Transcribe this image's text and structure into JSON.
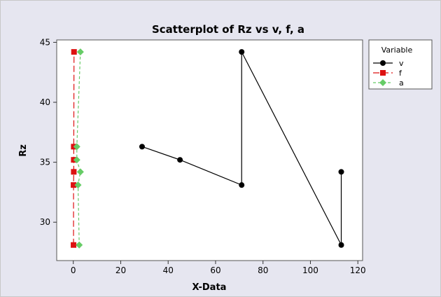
{
  "chart_data": {
    "type": "scatter",
    "title": "Scatterplot of Rz vs v, f, a",
    "xlabel": "X-Data",
    "ylabel": "Rz",
    "xlim": [
      -7,
      122
    ],
    "ylim": [
      26.8,
      45.2
    ],
    "x_ticks": [
      0,
      20,
      40,
      60,
      80,
      100,
      120
    ],
    "y_ticks": [
      30,
      35,
      40,
      45
    ],
    "grid": false,
    "legend": {
      "title": "Variable",
      "placement": "right",
      "entries": [
        "v",
        "f",
        "a"
      ]
    },
    "series": [
      {
        "name": "v",
        "color": "#000000",
        "marker": "circle",
        "line": "solid",
        "points": [
          {
            "x": 29,
            "y": 36.3
          },
          {
            "x": 45,
            "y": 35.2
          },
          {
            "x": 71,
            "y": 33.1
          },
          {
            "x": 71,
            "y": 44.2
          },
          {
            "x": 113,
            "y": 28.1
          },
          {
            "x": 113,
            "y": 34.2
          }
        ]
      },
      {
        "name": "f",
        "color": "#dd1111",
        "marker": "square",
        "line": "long-dash",
        "points": [
          {
            "x": 0.1,
            "y": 28.1
          },
          {
            "x": 0.1,
            "y": 33.1
          },
          {
            "x": 0.2,
            "y": 34.2
          },
          {
            "x": 0.2,
            "y": 35.2
          },
          {
            "x": 0.2,
            "y": 36.3
          },
          {
            "x": 0.3,
            "y": 44.2
          }
        ]
      },
      {
        "name": "a",
        "color": "#66cc66",
        "marker": "diamond",
        "line": "dash",
        "points": [
          {
            "x": 2.5,
            "y": 28.1
          },
          {
            "x": 2.0,
            "y": 33.1
          },
          {
            "x": 3.0,
            "y": 34.2
          },
          {
            "x": 1.5,
            "y": 35.2
          },
          {
            "x": 1.5,
            "y": 36.3
          },
          {
            "x": 3.0,
            "y": 44.2
          }
        ]
      }
    ]
  }
}
